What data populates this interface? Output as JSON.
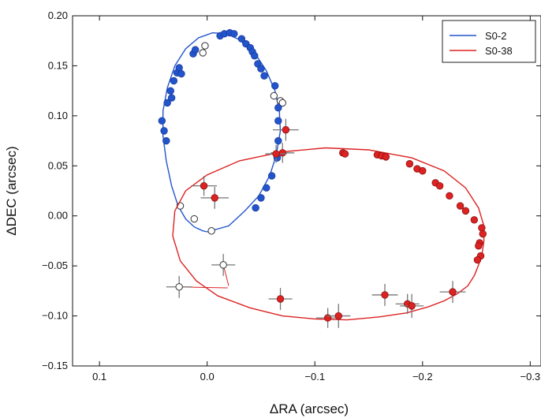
{
  "chart_data": {
    "type": "scatter",
    "xlabel": "ΔRA (arcsec)",
    "ylabel": "ΔDEC (arcsec)",
    "xlim": [
      0.125,
      -0.31
    ],
    "ylim": [
      -0.15,
      0.2
    ],
    "x_reversed": true,
    "xticks": [
      0.1,
      0.0,
      -0.1,
      -0.2,
      -0.3
    ],
    "xtick_labels": [
      "0.1",
      "0.0",
      "−0.1",
      "−0.2",
      "−0.3"
    ],
    "yticks": [
      0.2,
      0.15,
      0.1,
      0.05,
      0.0,
      -0.05,
      -0.1,
      -0.15
    ],
    "ytick_labels": [
      "0.20",
      "0.15",
      "0.10",
      "0.05",
      "0.00",
      "−0.05",
      "−0.10",
      "−0.15"
    ],
    "grid": false,
    "legend_position": "top-right",
    "series": [
      {
        "name": "S0-2",
        "color": "#2255cc",
        "orbit": [
          [
            0.0,
            -0.016
          ],
          [
            -0.02,
            -0.01
          ],
          [
            -0.035,
            0.005
          ],
          [
            -0.048,
            0.02
          ],
          [
            -0.058,
            0.04
          ],
          [
            -0.064,
            0.06
          ],
          [
            -0.068,
            0.085
          ],
          [
            -0.067,
            0.105
          ],
          [
            -0.063,
            0.125
          ],
          [
            -0.055,
            0.145
          ],
          [
            -0.044,
            0.163
          ],
          [
            -0.03,
            0.176
          ],
          [
            -0.018,
            0.182
          ],
          [
            -0.005,
            0.183
          ],
          [
            0.008,
            0.178
          ],
          [
            0.02,
            0.167
          ],
          [
            0.03,
            0.15
          ],
          [
            0.037,
            0.128
          ],
          [
            0.041,
            0.105
          ],
          [
            0.041,
            0.08
          ],
          [
            0.038,
            0.055
          ],
          [
            0.033,
            0.03
          ],
          [
            0.027,
            0.01
          ],
          [
            0.02,
            -0.003
          ],
          [
            0.012,
            -0.011
          ],
          [
            0.004,
            -0.015
          ],
          [
            0.0,
            -0.016
          ]
        ],
        "points": [
          [
            0.042,
            0.095
          ],
          [
            0.04,
            0.085
          ],
          [
            0.038,
            0.075
          ],
          [
            0.037,
            0.113
          ],
          [
            0.034,
            0.125
          ],
          [
            0.033,
            0.118
          ],
          [
            0.031,
            0.135
          ],
          [
            0.028,
            0.143
          ],
          [
            0.026,
            0.148
          ],
          [
            0.024,
            0.142
          ],
          [
            0.013,
            0.162
          ],
          [
            0.011,
            0.166
          ],
          [
            -0.012,
            0.18
          ],
          [
            -0.016,
            0.182
          ],
          [
            -0.021,
            0.183
          ],
          [
            -0.025,
            0.182
          ],
          [
            -0.032,
            0.177
          ],
          [
            -0.036,
            0.172
          ],
          [
            -0.04,
            0.168
          ],
          [
            -0.042,
            0.164
          ],
          [
            -0.044,
            0.16
          ],
          [
            -0.047,
            0.152
          ],
          [
            -0.05,
            0.147
          ],
          [
            -0.053,
            0.14
          ],
          [
            -0.063,
            0.13
          ],
          [
            -0.066,
            0.108
          ],
          [
            -0.066,
            0.095
          ],
          [
            -0.066,
            0.075
          ],
          [
            -0.065,
            0.058
          ],
          [
            -0.06,
            0.04
          ],
          [
            -0.055,
            0.028
          ],
          [
            -0.05,
            0.018
          ],
          [
            -0.045,
            0.008
          ]
        ],
        "open_points": [
          [
            0.025,
            0.01
          ],
          [
            0.012,
            -0.003
          ],
          [
            -0.004,
            -0.015
          ],
          [
            0.004,
            0.163
          ],
          [
            0.002,
            0.17
          ],
          [
            -0.062,
            0.12
          ],
          [
            -0.068,
            0.115
          ],
          [
            -0.07,
            0.113
          ]
        ]
      },
      {
        "name": "S0-38",
        "color": "#dd2222",
        "orbit": [
          [
            -0.248,
            -0.06
          ],
          [
            -0.242,
            -0.07
          ],
          [
            -0.232,
            -0.078
          ],
          [
            -0.22,
            -0.085
          ],
          [
            -0.205,
            -0.091
          ],
          [
            -0.185,
            -0.097
          ],
          [
            -0.16,
            -0.101
          ],
          [
            -0.13,
            -0.104
          ],
          [
            -0.1,
            -0.103
          ],
          [
            -0.07,
            -0.1
          ],
          [
            -0.04,
            -0.092
          ],
          [
            -0.01,
            -0.08
          ],
          [
            0.01,
            -0.065
          ],
          [
            0.025,
            -0.045
          ],
          [
            0.032,
            -0.02
          ],
          [
            0.03,
            0.005
          ],
          [
            0.02,
            0.025
          ],
          [
            0.0,
            0.041
          ],
          [
            -0.03,
            0.055
          ],
          [
            -0.07,
            0.064
          ],
          [
            -0.11,
            0.068
          ],
          [
            -0.15,
            0.066
          ],
          [
            -0.19,
            0.058
          ],
          [
            -0.22,
            0.045
          ],
          [
            -0.24,
            0.028
          ],
          [
            -0.252,
            0.008
          ],
          [
            -0.257,
            -0.01
          ],
          [
            -0.257,
            -0.025
          ],
          [
            -0.255,
            -0.04
          ],
          [
            -0.251,
            -0.052
          ],
          [
            -0.248,
            -0.06
          ]
        ],
        "points": [
          {
            "x": 0.003,
            "y": 0.03,
            "xerr": 0.012,
            "yerr": 0.01
          },
          {
            "x": -0.007,
            "y": 0.018,
            "xerr": 0.013,
            "yerr": 0.011
          },
          {
            "x": -0.073,
            "y": 0.086,
            "xerr": 0.012,
            "yerr": 0.011
          },
          {
            "x": -0.07,
            "y": 0.063,
            "xerr": 0.011,
            "yerr": 0.01
          },
          {
            "x": -0.064,
            "y": 0.062,
            "xerr": 0.01,
            "yerr": 0.009
          },
          {
            "x": -0.068,
            "y": -0.083,
            "xerr": 0.011,
            "yerr": 0.011
          },
          {
            "x": -0.112,
            "y": -0.102,
            "xerr": 0.011,
            "yerr": 0.01
          },
          {
            "x": -0.122,
            "y": -0.1,
            "xerr": 0.011,
            "yerr": 0.012
          },
          {
            "x": -0.165,
            "y": -0.079,
            "xerr": 0.012,
            "yerr": 0.011
          },
          {
            "x": -0.186,
            "y": -0.088,
            "xerr": 0.011,
            "yerr": 0.01
          },
          {
            "x": -0.19,
            "y": -0.09,
            "xerr": 0.011,
            "yerr": 0.012
          },
          {
            "x": -0.228,
            "y": -0.076,
            "xerr": 0.012,
            "yerr": 0.011
          },
          {
            "x": -0.126,
            "y": 0.063
          },
          {
            "x": -0.128,
            "y": 0.062
          },
          {
            "x": -0.158,
            "y": 0.061
          },
          {
            "x": -0.162,
            "y": 0.06
          },
          {
            "x": -0.166,
            "y": 0.059
          },
          {
            "x": -0.188,
            "y": 0.052
          },
          {
            "x": -0.195,
            "y": 0.047
          },
          {
            "x": -0.2,
            "y": 0.045
          },
          {
            "x": -0.212,
            "y": 0.033
          },
          {
            "x": -0.216,
            "y": 0.03
          },
          {
            "x": -0.225,
            "y": 0.02
          },
          {
            "x": -0.235,
            "y": 0.01
          },
          {
            "x": -0.24,
            "y": 0.005
          },
          {
            "x": -0.248,
            "y": -0.004
          },
          {
            "x": -0.255,
            "y": -0.012
          },
          {
            "x": -0.256,
            "y": -0.018
          },
          {
            "x": -0.253,
            "y": -0.027
          },
          {
            "x": -0.252,
            "y": -0.03
          },
          {
            "x": -0.254,
            "y": -0.04
          },
          {
            "x": -0.251,
            "y": -0.044
          }
        ],
        "open_points": [
          {
            "x": 0.026,
            "y": -0.071,
            "xerr": 0.012,
            "yerr": 0.011,
            "ox": -0.019,
            "oy": -0.072
          },
          {
            "x": -0.015,
            "y": -0.049,
            "xerr": 0.011,
            "yerr": 0.011,
            "ox": -0.02,
            "oy": -0.07
          }
        ]
      }
    ]
  }
}
